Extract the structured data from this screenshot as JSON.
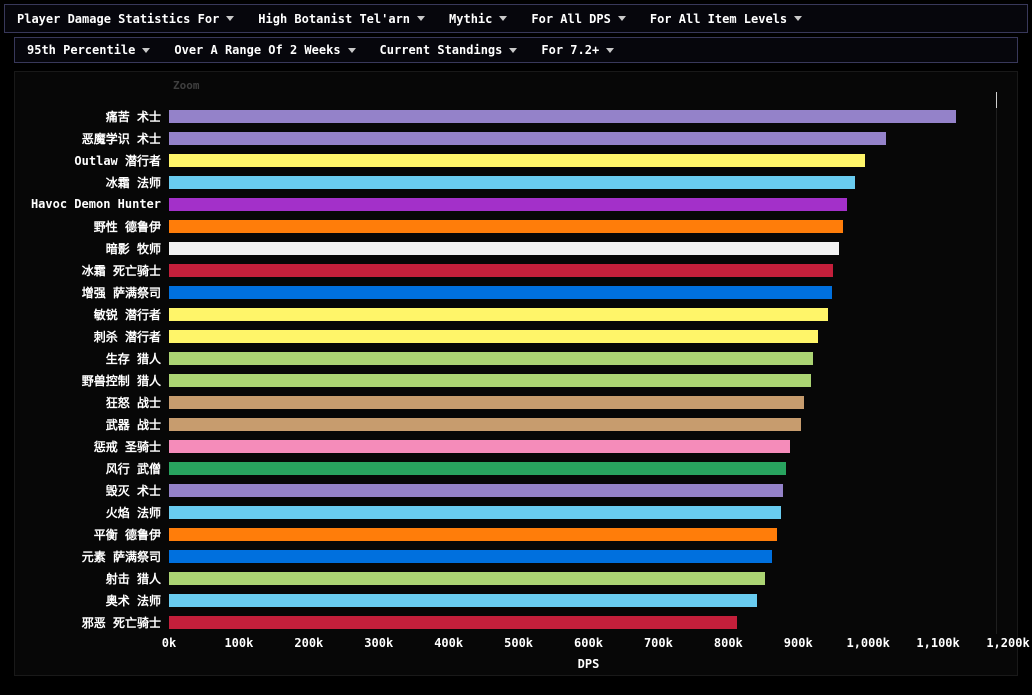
{
  "colors": {
    "page_bg": "#000000",
    "panel_bg": "#070707",
    "menubar_bg": "#06060c",
    "menubar_border": "#38385a",
    "text": "#ffffff",
    "zoom_text": "#3f3f3f"
  },
  "menu_bar_primary": {
    "items": [
      {
        "name": "menu-statistics-type",
        "label": "Player Damage Statistics For"
      },
      {
        "name": "menu-boss",
        "label": "High Botanist Tel'arn"
      },
      {
        "name": "menu-difficulty",
        "label": "Mythic"
      },
      {
        "name": "menu-metric-filter",
        "label": "For All DPS"
      },
      {
        "name": "menu-item-level-filter",
        "label": "For All Item Levels"
      }
    ]
  },
  "menu_bar_secondary": {
    "items": [
      {
        "name": "menu-percentile",
        "label": "95th Percentile"
      },
      {
        "name": "menu-time-range",
        "label": "Over A Range Of 2 Weeks"
      },
      {
        "name": "menu-standings",
        "label": "Current Standings"
      },
      {
        "name": "menu-patch-filter",
        "label": "For 7.2+"
      }
    ]
  },
  "chart": {
    "zoom_label": "Zoom"
  },
  "chart_data": {
    "type": "bar",
    "orientation": "horizontal",
    "title": "",
    "xlabel": "DPS",
    "x_unit": "k = thousand DPS",
    "xlim_k": [
      0,
      1200
    ],
    "grid": "off",
    "legend": "none",
    "x_ticks": [
      "0k",
      "100k",
      "200k",
      "300k",
      "400k",
      "500k",
      "600k",
      "700k",
      "800k",
      "900k",
      "1,000k",
      "1,100k",
      "1,200k"
    ],
    "bars": [
      {
        "label": "痛苦 术士",
        "class_name": "Warlock",
        "value_k": 1128,
        "color": "#9482C9"
      },
      {
        "label": "恶魔学识 术士",
        "class_name": "Warlock",
        "value_k": 1028,
        "color": "#9482C9"
      },
      {
        "label": "Outlaw 潜行者",
        "class_name": "Rogue",
        "value_k": 998,
        "color": "#FFF569"
      },
      {
        "label": "冰霜 法师",
        "class_name": "Mage",
        "value_k": 984,
        "color": "#69CCF0"
      },
      {
        "label": "Havoc Demon Hunter",
        "class_name": "Demon Hunter",
        "value_k": 972,
        "color": "#A330C9"
      },
      {
        "label": "野性 德鲁伊",
        "class_name": "Druid",
        "value_k": 966,
        "color": "#FF7D0A"
      },
      {
        "label": "暗影 牧师",
        "class_name": "Priest",
        "value_k": 960,
        "color": "#F2F2F2"
      },
      {
        "label": "冰霜 死亡骑士",
        "class_name": "Death Knight",
        "value_k": 952,
        "color": "#C41F3B"
      },
      {
        "label": "增强 萨满祭司",
        "class_name": "Shaman",
        "value_k": 950,
        "color": "#0070DE"
      },
      {
        "label": "敏锐 潜行者",
        "class_name": "Rogue",
        "value_k": 945,
        "color": "#FFF569"
      },
      {
        "label": "刺杀 潜行者",
        "class_name": "Rogue",
        "value_k": 930,
        "color": "#FFF569"
      },
      {
        "label": "生存 猎人",
        "class_name": "Hunter",
        "value_k": 923,
        "color": "#ABD473"
      },
      {
        "label": "野兽控制 猎人",
        "class_name": "Hunter",
        "value_k": 920,
        "color": "#ABD473"
      },
      {
        "label": "狂怒 战士",
        "class_name": "Warrior",
        "value_k": 910,
        "color": "#C79C6E"
      },
      {
        "label": "武器 战士",
        "class_name": "Warrior",
        "value_k": 906,
        "color": "#C79C6E"
      },
      {
        "label": "惩戒 圣骑士",
        "class_name": "Paladin",
        "value_k": 890,
        "color": "#F58CBA"
      },
      {
        "label": "风行 武僧",
        "class_name": "Monk",
        "value_k": 884,
        "color": "#28A35F"
      },
      {
        "label": "毁灭 术士",
        "class_name": "Warlock",
        "value_k": 880,
        "color": "#9482C9"
      },
      {
        "label": "火焰 法师",
        "class_name": "Mage",
        "value_k": 877,
        "color": "#69CCF0"
      },
      {
        "label": "平衡 德鲁伊",
        "class_name": "Druid",
        "value_k": 872,
        "color": "#FF7D0A"
      },
      {
        "label": "元素 萨满祭司",
        "class_name": "Shaman",
        "value_k": 865,
        "color": "#0070DE"
      },
      {
        "label": "射击 猎人",
        "class_name": "Hunter",
        "value_k": 855,
        "color": "#ABD473"
      },
      {
        "label": "奥术 法师",
        "class_name": "Mage",
        "value_k": 843,
        "color": "#69CCF0"
      },
      {
        "label": "邪恶 死亡骑士",
        "class_name": "Death Knight",
        "value_k": 814,
        "color": "#C41F3B"
      }
    ]
  }
}
